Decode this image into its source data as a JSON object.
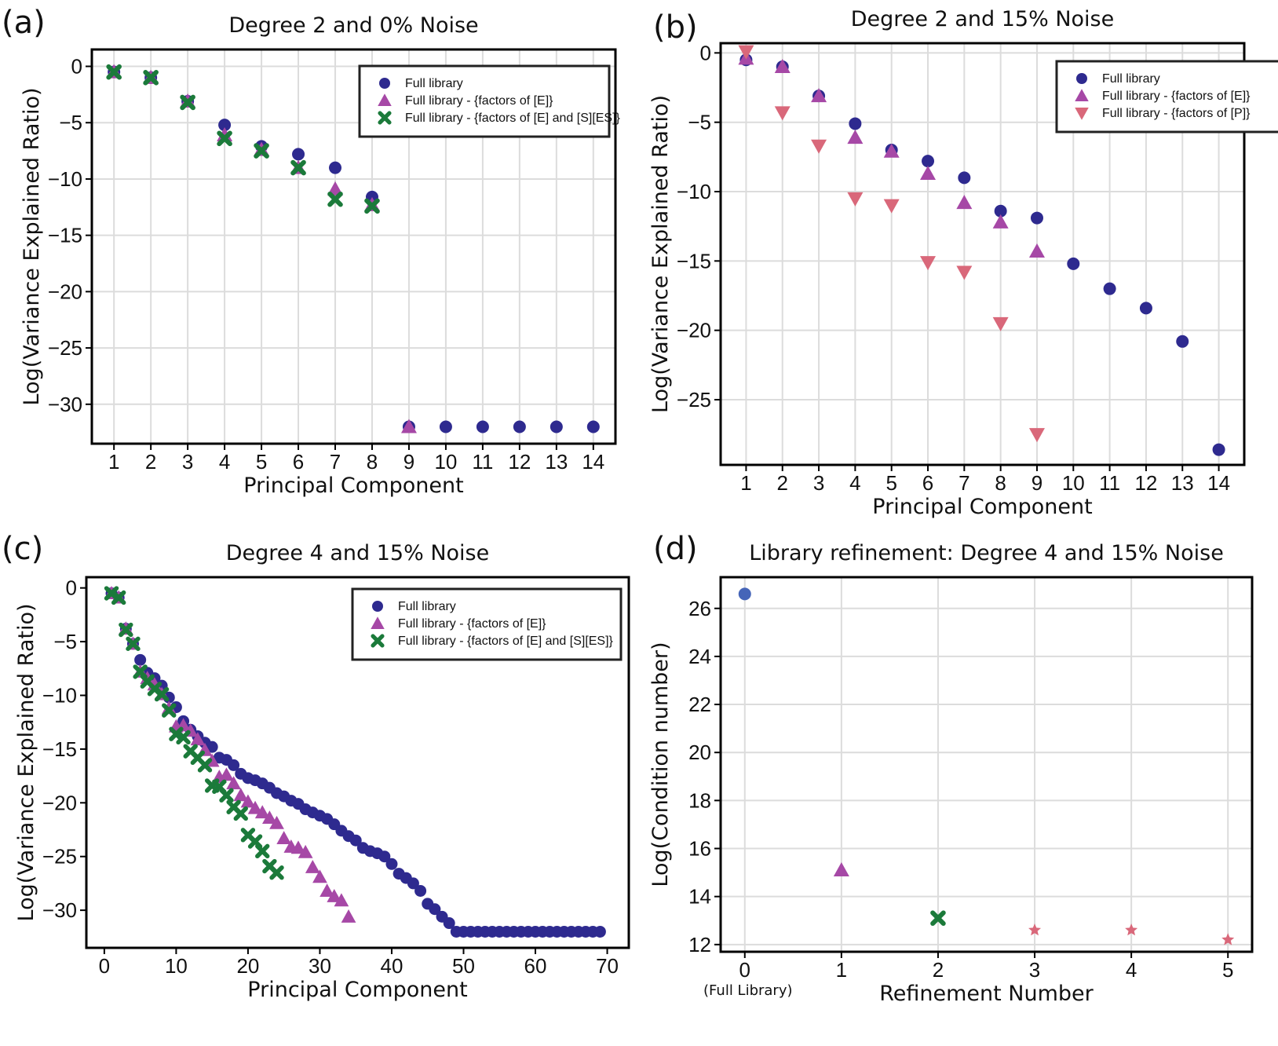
{
  "colors": {
    "full": "#2e2a8f",
    "minus_E": "#a648a6",
    "minus_ES": "#1b7a3a",
    "minus_P": "#d9687a",
    "refine0": "#4565b8",
    "refine1": "#a648a6",
    "refine2": "#1b7a3a",
    "refine3": "#d9687a"
  },
  "chart_data": [
    {
      "letter": "(a)",
      "type": "scatter",
      "title": "Degree 2 and 0% Noise",
      "xlabel": "Principal Component",
      "ylabel": "Log(Variance Explained Ratio)",
      "xlim": [
        0.4,
        14.6
      ],
      "ylim": [
        -33.5,
        1.5
      ],
      "xticks": [
        1,
        2,
        3,
        4,
        5,
        6,
        7,
        8,
        9,
        10,
        11,
        12,
        13,
        14
      ],
      "yticks": [
        0,
        -5,
        -10,
        -15,
        -20,
        -25,
        -30
      ],
      "grid": true,
      "legend": "top-right",
      "series": [
        {
          "name": "Full library",
          "marker": "circle",
          "color": "full",
          "x": [
            1,
            2,
            3,
            4,
            5,
            6,
            7,
            8,
            9,
            10,
            11,
            12,
            13,
            14
          ],
          "y": [
            -0.5,
            -1.0,
            -3.1,
            -5.2,
            -7.1,
            -7.8,
            -9.0,
            -11.6,
            -32,
            -32,
            -32,
            -32,
            -32,
            -32
          ]
        },
        {
          "name": "Full library - {factors of [E]}",
          "marker": "triangle-up",
          "color": "minus_E",
          "x": [
            1,
            2,
            3,
            4,
            5,
            6,
            7,
            8,
            9
          ],
          "y": [
            -0.5,
            -1.0,
            -3.1,
            -6.1,
            -7.4,
            -9.0,
            -10.9,
            -12.3,
            -32
          ]
        },
        {
          "name": "Full library - {factors of [E] and [S][ES]}",
          "marker": "x",
          "color": "minus_ES",
          "x": [
            1,
            2,
            3,
            4,
            5,
            6,
            7,
            8
          ],
          "y": [
            -0.5,
            -1.0,
            -3.2,
            -6.4,
            -7.5,
            -9.0,
            -11.8,
            -12.4
          ]
        }
      ]
    },
    {
      "letter": "(b)",
      "type": "scatter",
      "title": "Degree 2 and 15% Noise",
      "xlabel": "Principal Component",
      "ylabel": "Log(Variance Explained Ratio)",
      "xlim": [
        0.3,
        14.7
      ],
      "ylim": [
        -29.7,
        0.7
      ],
      "xticks": [
        1,
        2,
        3,
        4,
        5,
        6,
        7,
        8,
        9,
        10,
        11,
        12,
        13,
        14
      ],
      "yticks": [
        0,
        -5,
        -10,
        -15,
        -20,
        -25
      ],
      "grid": true,
      "legend": "top-right",
      "series": [
        {
          "name": "Full library",
          "marker": "circle",
          "color": "full",
          "x": [
            1,
            2,
            3,
            4,
            5,
            6,
            7,
            8,
            9,
            10,
            11,
            12,
            13,
            14
          ],
          "y": [
            -0.5,
            -1.0,
            -3.1,
            -5.1,
            -7.0,
            -7.8,
            -9.0,
            -11.4,
            -11.9,
            -15.2,
            -17.0,
            -18.4,
            -20.8,
            -28.6
          ]
        },
        {
          "name": "Full library - {factors of [E]}",
          "marker": "triangle-up",
          "color": "minus_E",
          "x": [
            1,
            2,
            3,
            4,
            5,
            6,
            7,
            8,
            9
          ],
          "y": [
            -0.4,
            -1.0,
            -3.1,
            -6.1,
            -7.1,
            -8.7,
            -10.8,
            -12.2,
            -14.3
          ]
        },
        {
          "name": "Full library - {factors of [P]}",
          "marker": "triangle-down",
          "color": "minus_P",
          "x": [
            1,
            2,
            3,
            4,
            5,
            6,
            7,
            8,
            9
          ],
          "y": [
            0.1,
            -4.3,
            -6.7,
            -10.5,
            -11.0,
            -15.1,
            -15.8,
            -19.5,
            -27.5
          ]
        }
      ]
    },
    {
      "letter": "(c)",
      "type": "scatter",
      "title": "Degree 4 and 15% Noise",
      "xlabel": "Principal Component",
      "ylabel": "Log(Variance Explained Ratio)",
      "xlim": [
        -2.5,
        73
      ],
      "ylim": [
        -33.5,
        1.0
      ],
      "xticks": [
        0,
        10,
        20,
        30,
        40,
        50,
        60,
        70
      ],
      "yticks": [
        0,
        -5,
        -10,
        -15,
        -20,
        -25,
        -30
      ],
      "grid": false,
      "legend": "top-right",
      "series": [
        {
          "name": "Full library",
          "marker": "circle",
          "color": "full",
          "x": [
            1,
            2,
            3,
            4,
            5,
            6,
            7,
            8,
            9,
            10,
            11,
            12,
            13,
            14,
            15,
            16,
            17,
            18,
            19,
            20,
            21,
            22,
            23,
            24,
            25,
            26,
            27,
            28,
            29,
            30,
            31,
            32,
            33,
            34,
            35,
            36,
            37,
            38,
            39,
            40,
            41,
            42,
            43,
            44,
            45,
            46,
            47,
            48,
            49,
            50,
            51,
            52,
            53,
            54,
            55,
            56,
            57,
            58,
            59,
            60,
            61,
            62,
            63,
            64,
            65,
            66,
            67,
            68,
            69
          ],
          "y": [
            -0.5,
            -0.9,
            -3.8,
            -5.2,
            -6.7,
            -7.9,
            -8.4,
            -9.1,
            -10.2,
            -11.1,
            -12.4,
            -13.2,
            -13.8,
            -14.4,
            -14.8,
            -15.8,
            -16.0,
            -16.5,
            -17.3,
            -17.7,
            -17.9,
            -18.2,
            -18.6,
            -19.1,
            -19.4,
            -19.8,
            -20.1,
            -20.6,
            -20.9,
            -21.2,
            -21.5,
            -22.0,
            -22.6,
            -23.1,
            -23.5,
            -24.2,
            -24.5,
            -24.7,
            -25.0,
            -25.7,
            -26.6,
            -27.0,
            -27.5,
            -28.2,
            -29.4,
            -29.9,
            -30.6,
            -31.2,
            -32,
            -32,
            -32,
            -32,
            -32,
            -32,
            -32,
            -32,
            -32,
            -32,
            -32,
            -32,
            -32,
            -32,
            -32,
            -32,
            -32,
            -32,
            -32,
            -32,
            -32
          ]
        },
        {
          "name": "Full library - {factors of [E]}",
          "marker": "triangle-up",
          "color": "minus_E",
          "x": [
            1,
            2,
            3,
            4,
            5,
            6,
            7,
            8,
            9,
            10,
            11,
            12,
            13,
            14,
            15,
            16,
            17,
            18,
            19,
            20,
            21,
            22,
            23,
            24,
            25,
            26,
            27,
            28,
            29,
            30,
            31,
            32,
            33,
            34
          ],
          "y": [
            -0.5,
            -0.9,
            -3.8,
            -5.2,
            -7.8,
            -8.4,
            -9.0,
            -9.9,
            -11.2,
            -12.9,
            -12.8,
            -13.3,
            -14.1,
            -15.1,
            -16.1,
            -17.6,
            -17.4,
            -18.2,
            -19.3,
            -19.9,
            -20.5,
            -20.9,
            -21.4,
            -21.9,
            -23.3,
            -24.1,
            -24.2,
            -24.6,
            -26.0,
            -26.9,
            -28.2,
            -28.7,
            -29.1,
            -30.6
          ]
        },
        {
          "name": "Full library - {factors of [E] and [S][ES]}",
          "marker": "x",
          "color": "minus_ES",
          "x": [
            1,
            2,
            3,
            4,
            5,
            6,
            7,
            8,
            9,
            10,
            11,
            12,
            13,
            14,
            15,
            16,
            17,
            18,
            19,
            20,
            21,
            22,
            23,
            24
          ],
          "y": [
            -0.5,
            -0.9,
            -3.9,
            -5.2,
            -7.8,
            -8.7,
            -9.4,
            -9.9,
            -11.4,
            -13.6,
            -13.9,
            -15.2,
            -15.8,
            -16.5,
            -18.4,
            -18.5,
            -19.3,
            -20.4,
            -21.0,
            -23.0,
            -23.6,
            -24.5,
            -25.9,
            -26.5
          ]
        }
      ]
    },
    {
      "letter": "(d)",
      "type": "scatter",
      "title": "Library refinement: Degree 4 and 15% Noise",
      "xlabel": "Refinement Number",
      "ylabel": "Log(Condition number)",
      "xlim": [
        -0.25,
        5.25
      ],
      "ylim": [
        11.7,
        27.3
      ],
      "xticks": [
        0,
        1,
        2,
        3,
        4,
        5
      ],
      "x_sublabel": "(Full Library)",
      "yticks": [
        12,
        14,
        16,
        18,
        20,
        22,
        24,
        26
      ],
      "grid": true,
      "legend": "",
      "series": [
        {
          "marker": "circle",
          "color": "refine0",
          "x": [
            0
          ],
          "y": [
            26.6
          ]
        },
        {
          "marker": "triangle-up",
          "color": "refine1",
          "x": [
            1
          ],
          "y": [
            15.1
          ]
        },
        {
          "marker": "x",
          "color": "refine2",
          "x": [
            2
          ],
          "y": [
            13.1
          ]
        },
        {
          "marker": "star",
          "color": "refine3",
          "x": [
            3,
            4,
            5
          ],
          "y": [
            12.6,
            12.6,
            12.2
          ]
        }
      ]
    }
  ]
}
